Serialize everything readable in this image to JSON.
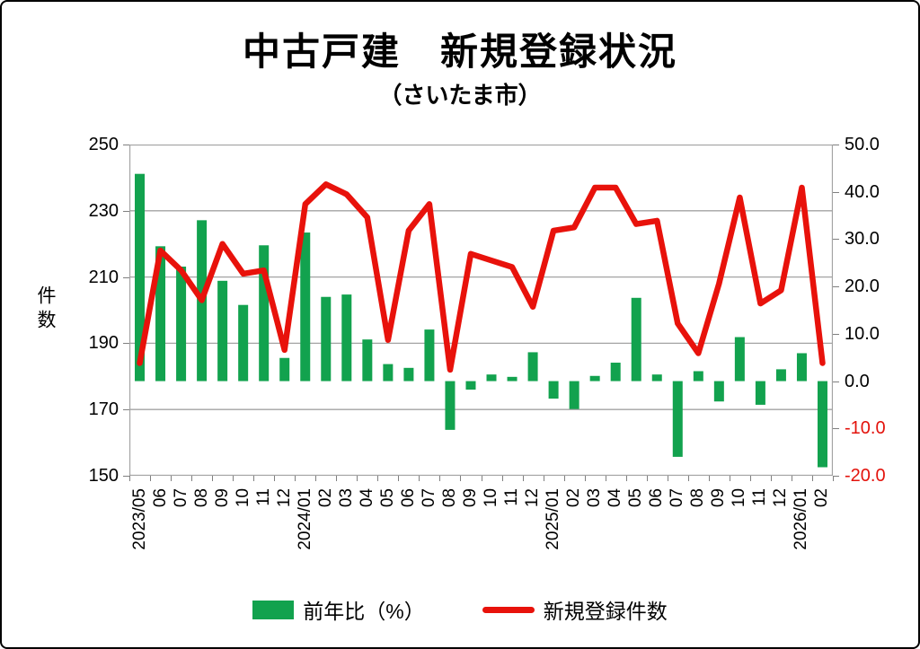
{
  "header": {
    "title": "中古戸建　新規登録状況",
    "subtitle": "（さいたま市）"
  },
  "chart_data": {
    "type": "combo bar+line, dual axis",
    "categories": [
      "2023/05",
      "06",
      "07",
      "08",
      "09",
      "10",
      "11",
      "12",
      "2024/01",
      "02",
      "03",
      "04",
      "05",
      "06",
      "07",
      "08",
      "09",
      "10",
      "11",
      "12",
      "2025/01",
      "02",
      "03",
      "04",
      "05",
      "06",
      "07",
      "08",
      "09",
      "10",
      "11",
      "12",
      "2026/01",
      "02"
    ],
    "series": [
      {
        "name": "前年比（%）",
        "type": "bar",
        "axis": "right",
        "color": "#12A24E",
        "values": [
          43.8,
          28.5,
          24.2,
          34.0,
          21.2,
          16.1,
          28.7,
          4.9,
          31.4,
          17.8,
          18.3,
          8.8,
          3.6,
          2.8,
          10.9,
          -10.3,
          -1.8,
          1.4,
          0.9,
          6.1,
          -3.7,
          -5.9,
          1.1,
          3.9,
          17.6,
          1.4,
          -16.0,
          2.1,
          -4.3,
          9.3,
          -5.0,
          2.5,
          5.9,
          -18.2
        ]
      },
      {
        "name": "新規登録件数",
        "type": "line",
        "axis": "left",
        "color": "#E8120B",
        "values": [
          184,
          218,
          212,
          203,
          220,
          211,
          212,
          188,
          232,
          238,
          235,
          228,
          191,
          224,
          232,
          182,
          217,
          215,
          213,
          201,
          224,
          225,
          237,
          237,
          226,
          227,
          196,
          187,
          208,
          234,
          202,
          206,
          237,
          184
        ]
      }
    ],
    "left_axis": {
      "label": "件数",
      "ticks": [
        250,
        230,
        210,
        190,
        170,
        150
      ],
      "range": [
        150,
        250
      ]
    },
    "right_axis": {
      "ticks": [
        50.0,
        40.0,
        30.0,
        20.0,
        10.0,
        0.0,
        -10.0,
        -20.0
      ],
      "range": [
        -20,
        50
      ],
      "negative_color": "#E3120B"
    },
    "grid": "horizontal, at left-axis ticks",
    "legend_position": "bottom"
  },
  "legend": {
    "bar_label": "前年比（%）",
    "line_label": "新規登録件数"
  },
  "colors": {
    "bar_green": "#12A24E",
    "line_red": "#E8120B",
    "grid_gray": "#A3A3A3",
    "negative_tick_red": "#E3120B"
  }
}
